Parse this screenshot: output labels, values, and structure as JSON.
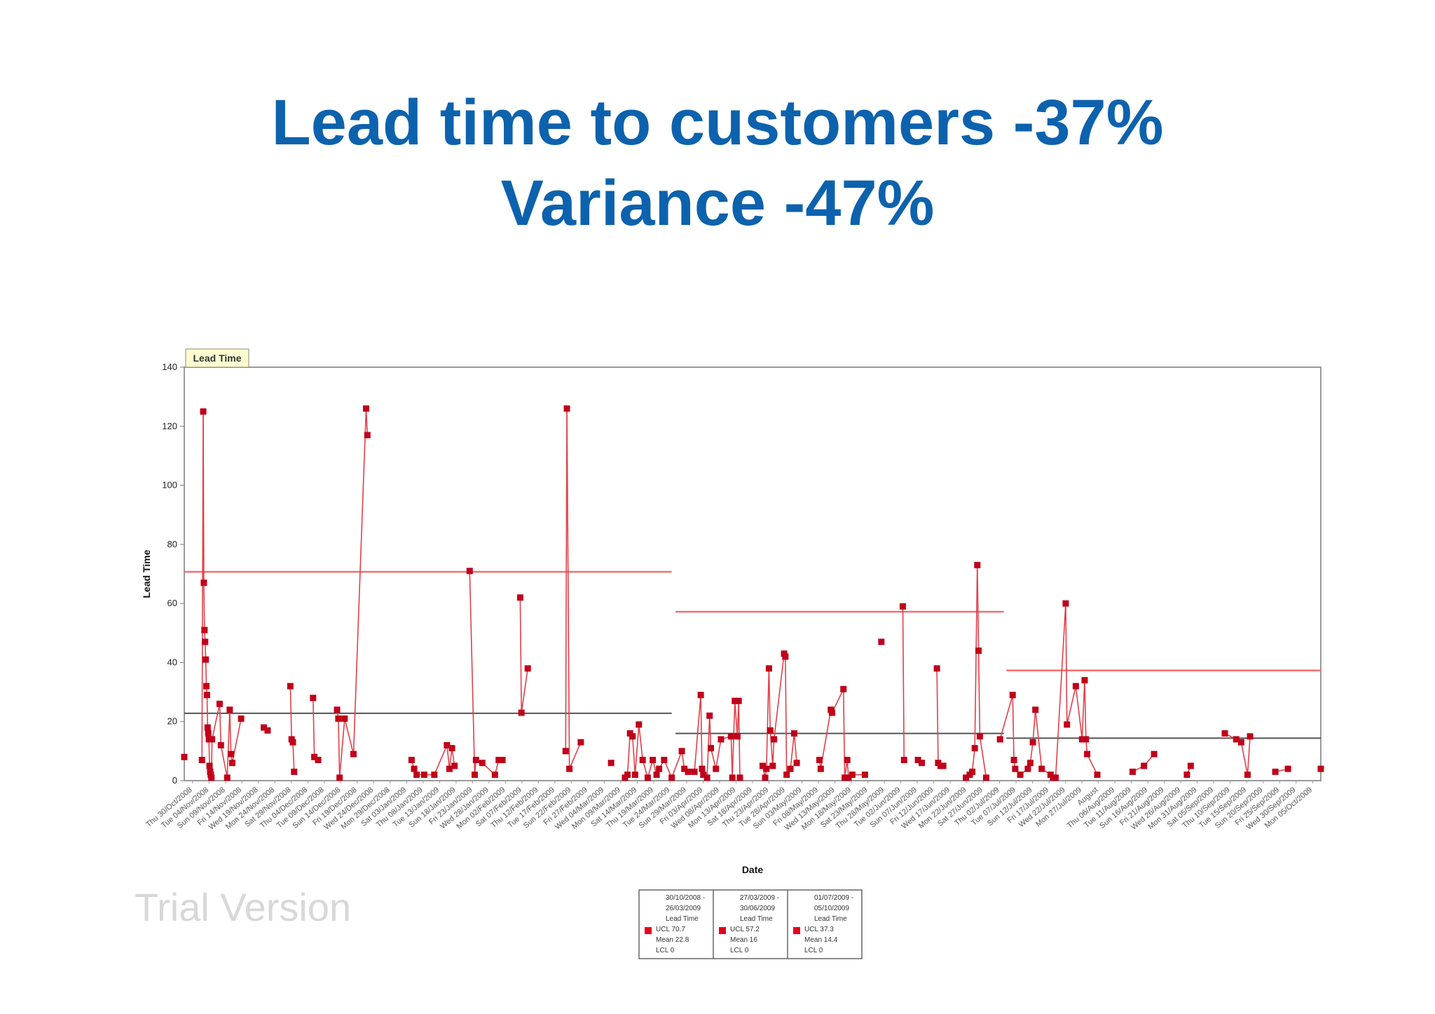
{
  "slide": {
    "title_line1": "Lead time to customers -37%",
    "title_line2": "Variance -47%",
    "watermark": "Trial Version"
  },
  "colors": {
    "title": "#0d62ad",
    "series": "#c0001a",
    "ucl_line": "#f07070",
    "mean_line": "#555555"
  },
  "chart_data": {
    "type": "scatter",
    "badge": "Lead Time",
    "ylabel": "Lead Time",
    "xlabel": "Date",
    "ylim": [
      0,
      140
    ],
    "yticks": [
      0,
      20,
      40,
      60,
      80,
      100,
      120,
      140
    ],
    "x_range": [
      0,
      90
    ],
    "xtick_labels": [
      "Thu 30/Oct/2008",
      "Tue 04/Nov/2008",
      "Sun 09/Nov/2008",
      "Fri 14/Nov/2008",
      "Wed 19/Nov/2008",
      "Mon 24/Nov/2008",
      "Sat 29/Nov/2008",
      "Thu 04/Dec/2008",
      "Tue 09/Dec/2008",
      "Sun 14/Dec/2008",
      "Fri 19/Dec/2008",
      "Wed 24/Dec/2008",
      "Mon 29/Dec/2008",
      "Sat 03/Jan/2009",
      "Thu 08/Jan/2009",
      "Tue 13/Jan/2009",
      "Sun 18/Jan/2009",
      "Fri 23/Jan/2009",
      "Wed 28/Jan/2009",
      "Mon 02/Feb/2009",
      "Sat 07/Feb/2009",
      "Thu 12/Feb/2009",
      "Tue 17/Feb/2009",
      "Sun 22/Feb/2009",
      "Fri 27/Feb/2009",
      "Wed 04/Mar/2009",
      "Mon 09/Mar/2009",
      "Sat 14/Mar/2009",
      "Thu 19/Mar/2009",
      "Tue 24/Mar/2009",
      "Sun 29/Mar/2009",
      "Fri 03/Apr/2009",
      "Wed 08/Apr/2009",
      "Mon 13/Apr/2009",
      "Sat 18/Apr/2009",
      "Thu 23/Apr/2009",
      "Tue 28/Apr/2009",
      "Sun 03/May/2009",
      "Fri 08/May/2009",
      "Wed 13/May/2009",
      "Mon 18/May/2009",
      "Sat 23/May/2009",
      "Thu 28/May/2009",
      "Tue 02/Jun/2009",
      "Sun 07/Jun/2009",
      "Fri 12/Jun/2009",
      "Wed 17/Jun/2009",
      "Mon 22/Jun/2009",
      "Sat 27/Jun/2009",
      "Thu 02/Jul/2009",
      "Tue 07/Jul/2009",
      "Sun 12/Jul/2009",
      "Fri 17/Jul/2009",
      "Wed 22/Jul/2009",
      "Mon 27/Jul/2009",
      "August",
      "Thu 06/Aug/2009",
      "Tue 11/Aug/2009",
      "Sun 16/Aug/2009",
      "Fri 21/Aug/2009",
      "Wed 26/Aug/2009",
      "Mon 31/Aug/2009",
      "Sat 05/Sep/2009",
      "Thu 10/Sep/2009",
      "Tue 15/Sep/2009",
      "Sun 20/Sep/2009",
      "Fri 25/Sep/2009",
      "Wed 30/Sep/2009",
      "Mon 05/Oct/2009"
    ],
    "points": [
      [
        0.0,
        8
      ],
      [
        1.4,
        7
      ],
      [
        1.5,
        125
      ],
      [
        1.55,
        67
      ],
      [
        1.6,
        51
      ],
      [
        1.65,
        47
      ],
      [
        1.7,
        41
      ],
      [
        1.75,
        32
      ],
      [
        1.8,
        29
      ],
      [
        1.85,
        18
      ],
      [
        1.9,
        16
      ],
      [
        1.95,
        14
      ],
      [
        2.0,
        5
      ],
      [
        2.05,
        3
      ],
      [
        2.1,
        2
      ],
      [
        2.15,
        1
      ],
      [
        2.2,
        14
      ],
      [
        2.8,
        26
      ],
      [
        2.9,
        12
      ],
      [
        3.4,
        1
      ],
      [
        3.6,
        24
      ],
      [
        3.7,
        9
      ],
      [
        3.8,
        6
      ],
      [
        4.5,
        21
      ],
      [
        6.3,
        18
      ],
      [
        6.6,
        17
      ],
      [
        8.4,
        32
      ],
      [
        8.5,
        14
      ],
      [
        8.6,
        13
      ],
      [
        8.7,
        3
      ],
      [
        10.2,
        28
      ],
      [
        10.3,
        8
      ],
      [
        10.6,
        7
      ],
      [
        12.1,
        24
      ],
      [
        12.2,
        21
      ],
      [
        12.3,
        1
      ],
      [
        12.7,
        21
      ],
      [
        13.4,
        9
      ],
      [
        14.4,
        126
      ],
      [
        14.5,
        117
      ],
      [
        18.0,
        7
      ],
      [
        18.2,
        4
      ],
      [
        18.4,
        2
      ],
      [
        19.0,
        2
      ],
      [
        19.8,
        2
      ],
      [
        20.8,
        12
      ],
      [
        21.0,
        4
      ],
      [
        21.2,
        11
      ],
      [
        21.4,
        5
      ],
      [
        22.6,
        71
      ],
      [
        23.0,
        2
      ],
      [
        23.1,
        7
      ],
      [
        23.6,
        6
      ],
      [
        24.6,
        2
      ],
      [
        24.9,
        7
      ],
      [
        25.2,
        7
      ],
      [
        26.6,
        62
      ],
      [
        26.7,
        23
      ],
      [
        27.2,
        38
      ],
      [
        30.2,
        10
      ],
      [
        30.3,
        126
      ],
      [
        30.5,
        4
      ],
      [
        31.4,
        13
      ],
      [
        33.8,
        6
      ],
      [
        34.9,
        1
      ],
      [
        35.1,
        2
      ],
      [
        35.3,
        16
      ],
      [
        35.5,
        15
      ],
      [
        35.7,
        2
      ],
      [
        36.0,
        19
      ],
      [
        36.3,
        7
      ],
      [
        36.7,
        1
      ],
      [
        37.1,
        7
      ],
      [
        37.4,
        2
      ],
      [
        37.6,
        4
      ],
      [
        38.0,
        7
      ],
      [
        38.6,
        1
      ],
      [
        39.4,
        10
      ],
      [
        39.6,
        4
      ],
      [
        39.9,
        3
      ],
      [
        40.4,
        3
      ],
      [
        40.9,
        29
      ],
      [
        41.0,
        4
      ],
      [
        41.1,
        2
      ],
      [
        41.4,
        1
      ],
      [
        41.6,
        22
      ],
      [
        41.7,
        11
      ],
      [
        42.1,
        4
      ],
      [
        42.5,
        14
      ],
      [
        43.3,
        15
      ],
      [
        43.4,
        1
      ],
      [
        43.6,
        27
      ],
      [
        43.8,
        15
      ],
      [
        43.9,
        27
      ],
      [
        44.0,
        1
      ],
      [
        45.8,
        5
      ],
      [
        46.0,
        1
      ],
      [
        46.1,
        4
      ],
      [
        46.3,
        38
      ],
      [
        46.4,
        17
      ],
      [
        46.6,
        5
      ],
      [
        46.7,
        14
      ],
      [
        47.5,
        43
      ],
      [
        47.6,
        42
      ],
      [
        47.7,
        2
      ],
      [
        48.0,
        4
      ],
      [
        48.3,
        16
      ],
      [
        48.5,
        6
      ],
      [
        50.3,
        7
      ],
      [
        50.4,
        4
      ],
      [
        51.2,
        24
      ],
      [
        51.3,
        23
      ],
      [
        52.2,
        31
      ],
      [
        52.3,
        1
      ],
      [
        52.5,
        7
      ],
      [
        52.6,
        1
      ],
      [
        52.9,
        2
      ],
      [
        53.9,
        2
      ],
      [
        55.2,
        47
      ],
      [
        56.9,
        59
      ],
      [
        57.0,
        7
      ],
      [
        58.1,
        7
      ],
      [
        58.4,
        6
      ],
      [
        59.6,
        38
      ],
      [
        59.7,
        6
      ],
      [
        59.9,
        5
      ],
      [
        60.1,
        5
      ],
      [
        61.9,
        1
      ],
      [
        62.2,
        2
      ],
      [
        62.4,
        3
      ],
      [
        62.6,
        11
      ],
      [
        62.8,
        73
      ],
      [
        62.9,
        44
      ],
      [
        63.0,
        15
      ],
      [
        63.5,
        1
      ],
      [
        64.6,
        14
      ],
      [
        65.6,
        29
      ],
      [
        65.7,
        7
      ],
      [
        65.8,
        4
      ],
      [
        66.2,
        2
      ],
      [
        66.8,
        4
      ],
      [
        67.0,
        6
      ],
      [
        67.2,
        13
      ],
      [
        67.4,
        24
      ],
      [
        67.9,
        4
      ],
      [
        68.6,
        2
      ],
      [
        68.8,
        1
      ],
      [
        69.0,
        1
      ],
      [
        69.8,
        60
      ],
      [
        69.9,
        19
      ],
      [
        70.6,
        32
      ],
      [
        71.1,
        14
      ],
      [
        71.3,
        34
      ],
      [
        71.4,
        14
      ],
      [
        71.5,
        9
      ],
      [
        72.3,
        2
      ],
      [
        75.1,
        3
      ],
      [
        76.0,
        5
      ],
      [
        76.8,
        9
      ],
      [
        79.4,
        2
      ],
      [
        79.7,
        5
      ],
      [
        82.4,
        16
      ],
      [
        83.3,
        14
      ],
      [
        83.7,
        13
      ],
      [
        84.2,
        2
      ],
      [
        84.4,
        15
      ],
      [
        86.4,
        3
      ],
      [
        87.4,
        4
      ],
      [
        90.0,
        4
      ]
    ],
    "control_periods": [
      {
        "range": "30/10/2008 - 26/03/2009",
        "series": "Lead Time",
        "ucl_label": "UCL 70.7",
        "mean_label": "Mean 22.8",
        "lcl_label": "LCL 0",
        "ucl": 70.7,
        "mean": 22.8,
        "lcl": 0,
        "x_start": 0,
        "x_end": 38.6
      },
      {
        "range": "27/03/2009 - 30/06/2009",
        "series": "Lead Time",
        "ucl_label": "UCL 57.2",
        "mean_label": "Mean 16",
        "lcl_label": "LCL 0",
        "ucl": 57.2,
        "mean": 16,
        "lcl": 0,
        "x_start": 38.9,
        "x_end": 64.9
      },
      {
        "range": "01/07/2009 - 05/10/2009",
        "series": "Lead Time",
        "ucl_label": "UCL 37.3",
        "mean_label": "Mean 14.4",
        "lcl_label": "LCL 0",
        "ucl": 37.3,
        "mean": 14.4,
        "lcl": 0,
        "x_start": 65.1,
        "x_end": 90
      }
    ],
    "grid": false
  }
}
